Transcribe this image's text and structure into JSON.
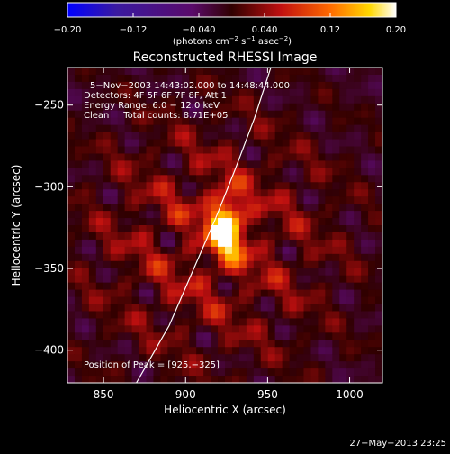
{
  "chart_data": {
    "type": "heatmap",
    "title": "Reconstructed RHESSI Image",
    "xlabel": "Heliocentric X (arcsec)",
    "ylabel": "Heliocentric Y (arcsec)",
    "xlim": [
      828,
      1020
    ],
    "ylim": [
      -420,
      -227
    ],
    "x_ticks": [
      850,
      900,
      950,
      1000
    ],
    "x_tick_labels": [
      "850",
      "900",
      "950",
      "1000"
    ],
    "y_ticks": [
      -250,
      -300,
      -350,
      -400
    ],
    "y_tick_labels": [
      "−250",
      "−300",
      "−350",
      "−400"
    ],
    "colorbar": {
      "range": [
        -0.2,
        0.2
      ],
      "ticks": [
        -0.2,
        -0.12,
        -0.04,
        0.04,
        0.12,
        0.2
      ],
      "tick_labels": [
        "−0.20",
        "−0.12",
        "−0.040",
        "0.040",
        "0.12",
        "0.20"
      ],
      "label_prefix": "(photons cm",
      "label_exp1": "−2",
      "label_mid": " s",
      "label_exp2": "−1",
      "label_mid2": " asec",
      "label_exp3": "−2",
      "label_suffix": ")"
    },
    "annotations": [
      "5−Nov−2003 14:43:02.000 to 14:48:44.000",
      "Detectors: 4F 5F 6F 7F 8F, Att 1",
      "Energy Range: 6.0 − 12.0 keV",
      "Clean     Total counts: 8.71E+05"
    ],
    "peak_label": "Position of Peak = [925,−325]",
    "peak": {
      "x": 925,
      "y": -325,
      "value": 0.2
    },
    "limb_curve": [
      {
        "x": 870,
        "y": -420
      },
      {
        "x": 890,
        "y": -385
      },
      {
        "x": 905,
        "y": -350
      },
      {
        "x": 918,
        "y": -320
      },
      {
        "x": 930,
        "y": -290
      },
      {
        "x": 942,
        "y": -258
      },
      {
        "x": 952,
        "y": -227
      }
    ]
  },
  "footer": {
    "timestamp": "27−May−2013 23:25"
  }
}
